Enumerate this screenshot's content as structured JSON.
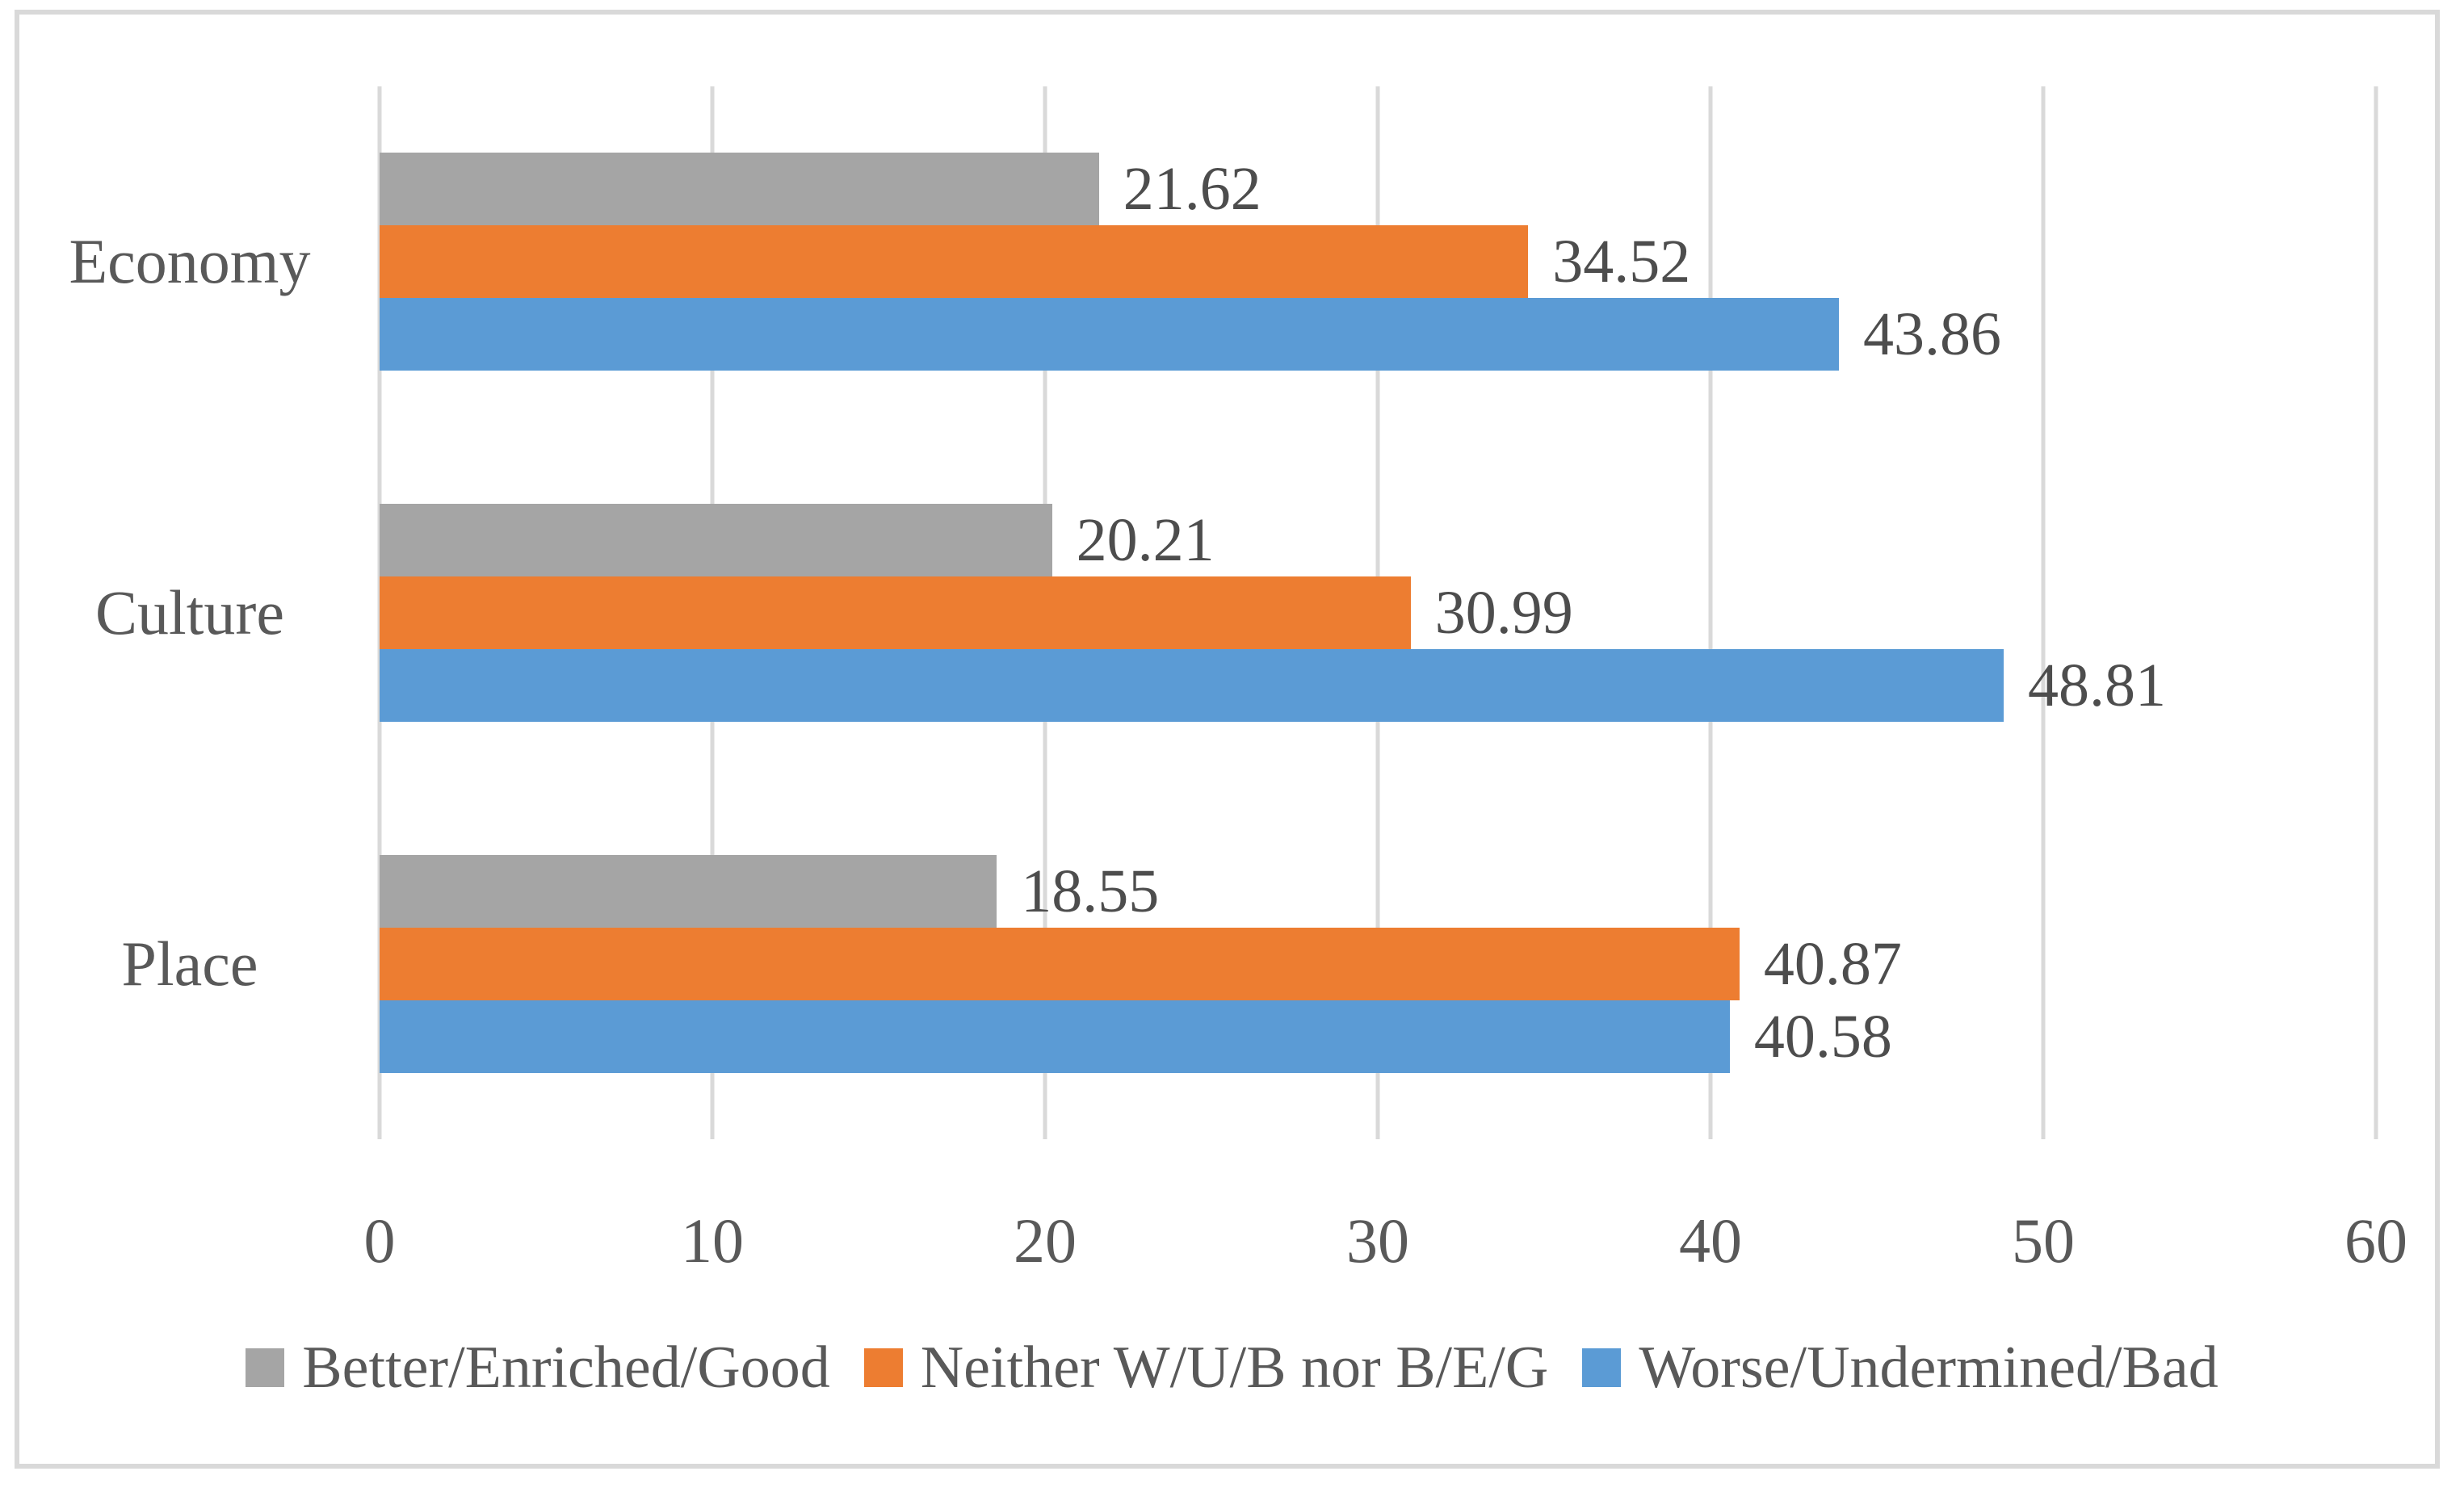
{
  "chart_data": {
    "type": "bar",
    "orientation": "horizontal",
    "title": "",
    "xlabel": "",
    "ylabel": "",
    "categories": [
      "Economy",
      "Culture",
      "Place"
    ],
    "series": [
      {
        "name": "Better/Enriched/Good",
        "color": "#A5A5A5",
        "values": [
          21.62,
          20.21,
          18.55
        ]
      },
      {
        "name": "Neither W/U/B nor B/E/G",
        "color": "#ED7D31",
        "values": [
          34.52,
          30.99,
          40.87
        ]
      },
      {
        "name": "Worse/Undermined/Bad",
        "color": "#5B9BD5",
        "values": [
          43.86,
          48.81,
          40.58
        ]
      }
    ],
    "xlim": [
      0,
      60
    ],
    "x_ticks": [
      0,
      10,
      20,
      30,
      40,
      50,
      60
    ],
    "grid": true,
    "data_labels": true,
    "legend_position": "bottom"
  },
  "colors": {
    "gridline": "#D9D9D9",
    "chart_border": "#D9D9D9",
    "axis_text": "#595959",
    "value_text": "#4d4d4d",
    "background": "#ffffff"
  }
}
